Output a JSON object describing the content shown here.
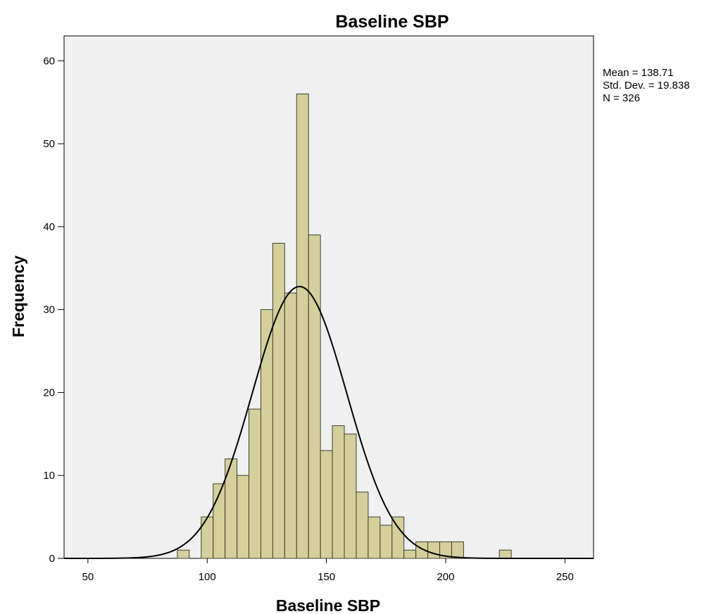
{
  "chart_data": {
    "type": "bar",
    "title": "Baseline SBP",
    "xlabel": "Baseline SBP",
    "ylabel": "Frequency",
    "xlim": [
      40,
      262
    ],
    "ylim": [
      0,
      63
    ],
    "x_ticks": [
      50,
      100,
      150,
      200,
      250
    ],
    "y_ticks": [
      0,
      10,
      20,
      30,
      40,
      50,
      60
    ],
    "bin_width": 5,
    "bins": [
      {
        "start": 87.5,
        "count": 1
      },
      {
        "start": 97.5,
        "count": 5
      },
      {
        "start": 102.5,
        "count": 9
      },
      {
        "start": 107.5,
        "count": 12
      },
      {
        "start": 112.5,
        "count": 10
      },
      {
        "start": 117.5,
        "count": 18
      },
      {
        "start": 122.5,
        "count": 30
      },
      {
        "start": 127.5,
        "count": 38
      },
      {
        "start": 132.5,
        "count": 32
      },
      {
        "start": 137.5,
        "count": 56
      },
      {
        "start": 142.5,
        "count": 39
      },
      {
        "start": 147.5,
        "count": 13
      },
      {
        "start": 152.5,
        "count": 16
      },
      {
        "start": 157.5,
        "count": 15
      },
      {
        "start": 162.5,
        "count": 8
      },
      {
        "start": 167.5,
        "count": 5
      },
      {
        "start": 172.5,
        "count": 4
      },
      {
        "start": 177.5,
        "count": 5
      },
      {
        "start": 182.5,
        "count": 1
      },
      {
        "start": 187.5,
        "count": 2
      },
      {
        "start": 192.5,
        "count": 2
      },
      {
        "start": 197.5,
        "count": 2
      },
      {
        "start": 202.5,
        "count": 2
      },
      {
        "start": 222.5,
        "count": 1
      }
    ],
    "normal_curve": {
      "mean": 138.71,
      "sd": 19.838,
      "n": 326
    },
    "stats": {
      "mean_text": "Mean = 138.71",
      "sd_text": "Std. Dev. = 19.838",
      "n_text": "N = 326"
    },
    "grid": false,
    "colors": {
      "bar_fill": "#d5cf9b",
      "bar_stroke": "#3f3f2f",
      "plot_background": "#f0f0f0",
      "curve": "#000000"
    }
  }
}
